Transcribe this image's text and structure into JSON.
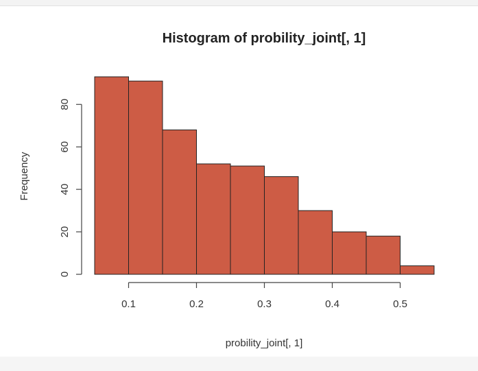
{
  "chart_data": {
    "type": "bar",
    "title": "Histogram of probility_joint[, 1]",
    "xlabel": "probility_joint[, 1]",
    "ylabel": "Frequency",
    "bins": [
      {
        "x0": 0.05,
        "x1": 0.1,
        "count": 93
      },
      {
        "x0": 0.1,
        "x1": 0.15,
        "count": 91
      },
      {
        "x0": 0.15,
        "x1": 0.2,
        "count": 68
      },
      {
        "x0": 0.2,
        "x1": 0.25,
        "count": 52
      },
      {
        "x0": 0.25,
        "x1": 0.3,
        "count": 51
      },
      {
        "x0": 0.3,
        "x1": 0.35,
        "count": 46
      },
      {
        "x0": 0.35,
        "x1": 0.4,
        "count": 30
      },
      {
        "x0": 0.4,
        "x1": 0.45,
        "count": 20
      },
      {
        "x0": 0.45,
        "x1": 0.5,
        "count": 18
      },
      {
        "x0": 0.5,
        "x1": 0.55,
        "count": 4
      }
    ],
    "x_ticks": [
      0.1,
      0.2,
      0.3,
      0.4,
      0.5
    ],
    "x_tick_labels": [
      "0.1",
      "0.2",
      "0.3",
      "0.4",
      "0.5"
    ],
    "y_ticks": [
      0,
      20,
      40,
      60,
      80
    ],
    "y_tick_labels": [
      "0",
      "20",
      "40",
      "60",
      "80"
    ],
    "xlim": [
      0.05,
      0.55
    ],
    "ylim": [
      0,
      93
    ],
    "bar_color": "#cd5c45",
    "grid": false,
    "legend": false
  }
}
